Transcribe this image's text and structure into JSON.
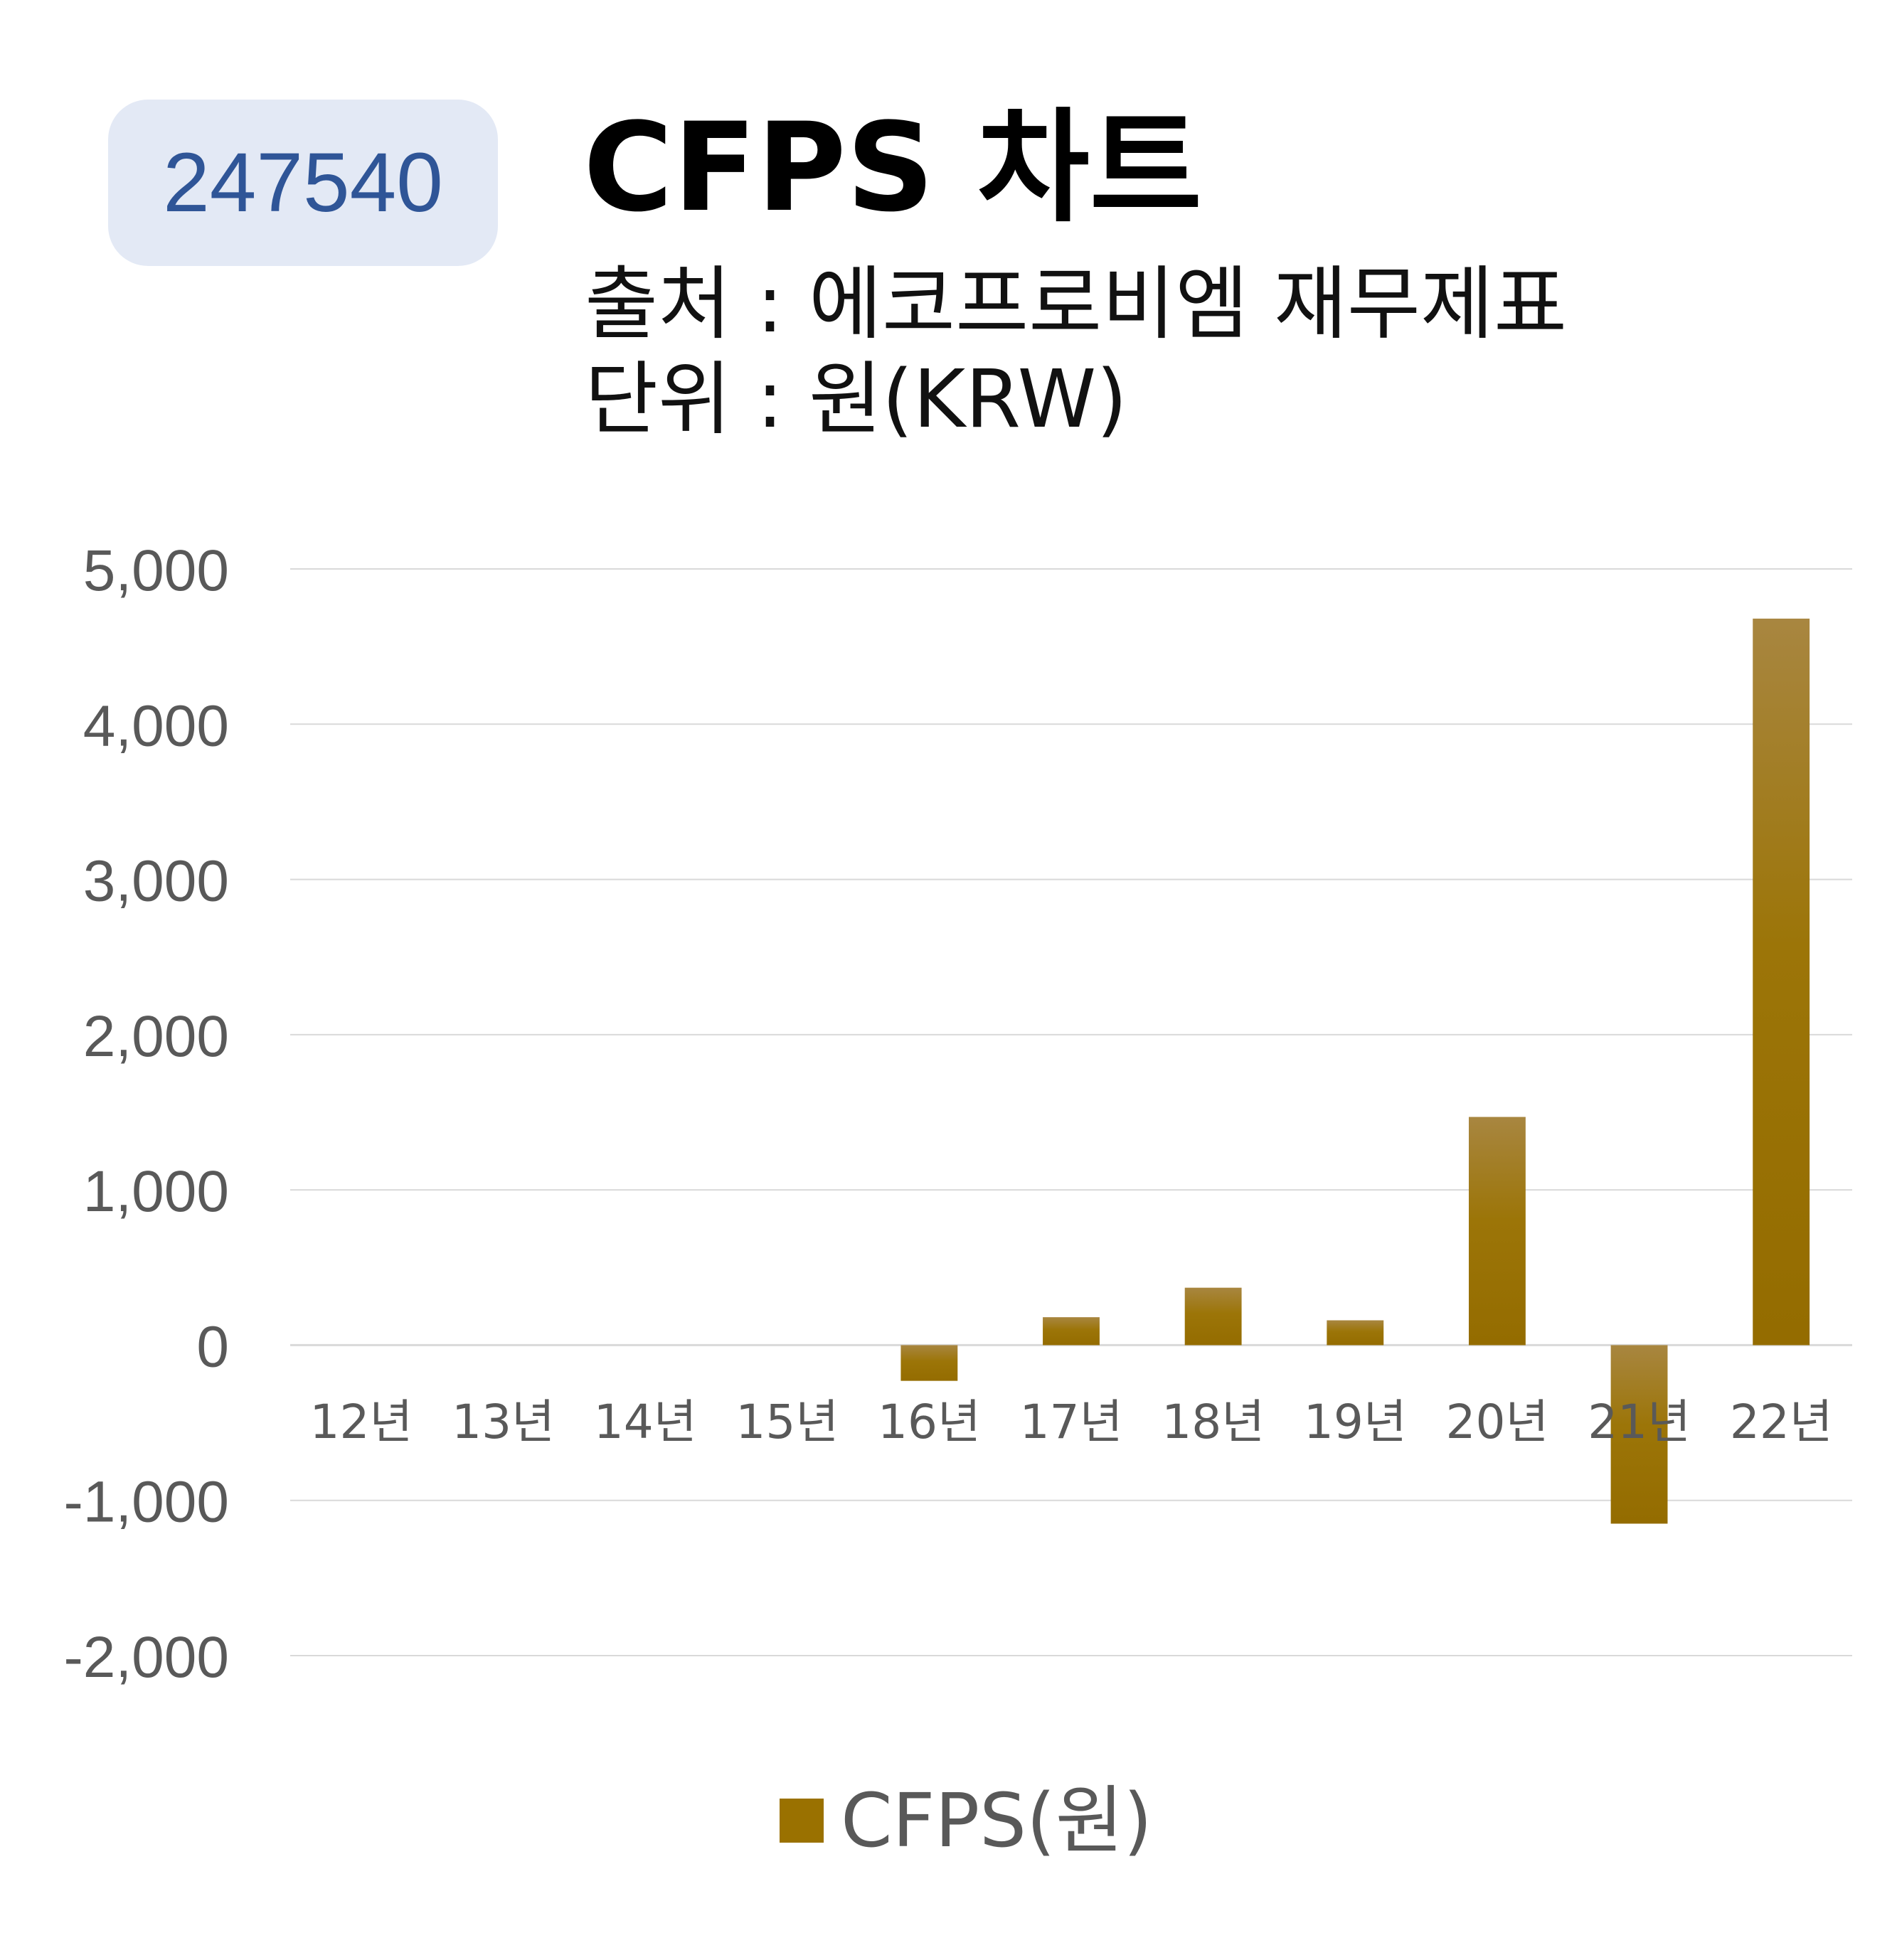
{
  "badge": {
    "code": "247540"
  },
  "header": {
    "title": "CFPS 차트",
    "source": "출처 : 에코프로비엠 재무제표",
    "unit": "단위 : 원(KRW)"
  },
  "colors": {
    "bar": "#9a7100",
    "bar_highlight": "#a88640",
    "grid": "#d9d9d9",
    "axis_text": "#595959",
    "badge_bg": "#e3e9f5",
    "badge_text": "#2f5597"
  },
  "chart_data": {
    "type": "bar",
    "categories": [
      "12년",
      "13년",
      "14년",
      "15년",
      "16년",
      "17년",
      "18년",
      "19년",
      "20년",
      "21년",
      "22년"
    ],
    "series": [
      {
        "name": "CFPS(원)",
        "values": [
          null,
          null,
          null,
          null,
          -230,
          180,
          370,
          160,
          1470,
          -1150,
          4680
        ]
      }
    ],
    "ylim": [
      -2000,
      5000
    ],
    "yticks": [
      5000,
      4000,
      3000,
      2000,
      1000,
      0,
      -1000,
      -2000
    ],
    "ytick_labels": [
      "5,000",
      "4,000",
      "3,000",
      "2,000",
      "1,000",
      "0",
      "-1,000",
      "-2,000"
    ],
    "grid": true,
    "legend_position": "bottom-center"
  },
  "legend": {
    "label": "CFPS(원)"
  }
}
